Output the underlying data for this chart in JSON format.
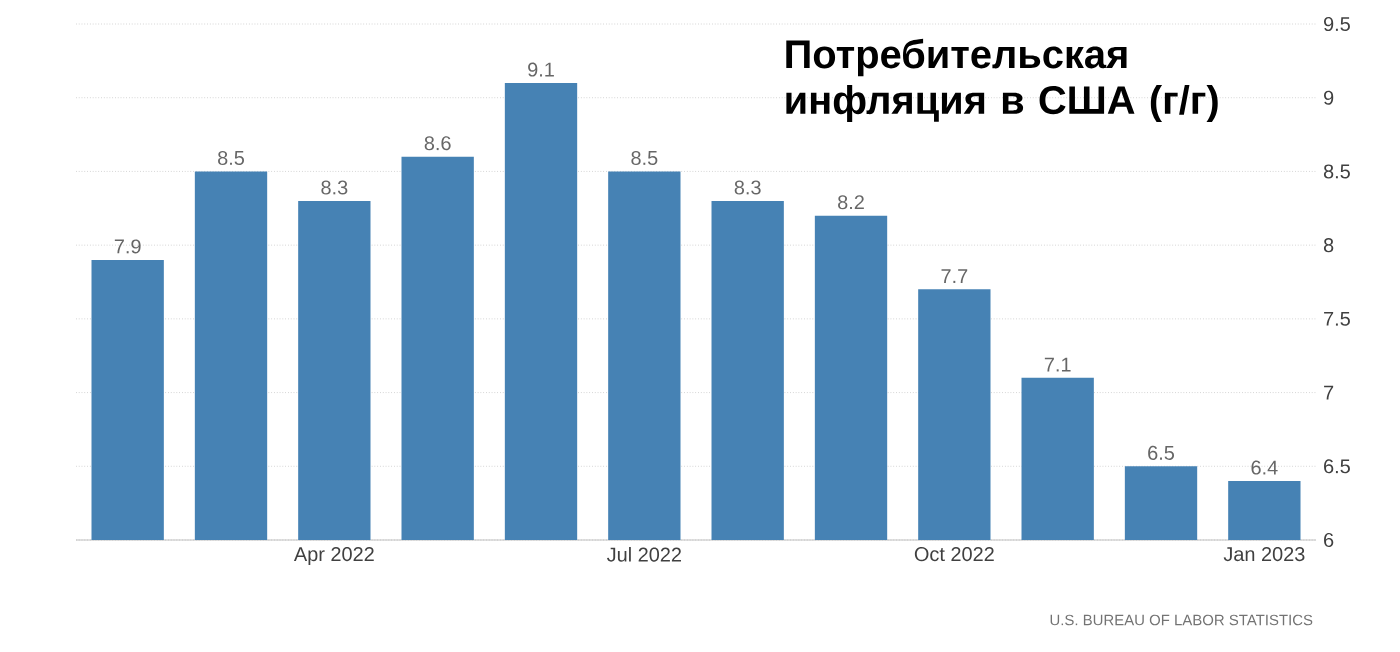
{
  "chart_data": {
    "type": "bar",
    "title": "Потребительская инфляция в США (г/г)",
    "categories": [
      null,
      null,
      "Apr 2022",
      null,
      null,
      "Jul 2022",
      null,
      null,
      "Oct 2022",
      null,
      null,
      "Jan 2023"
    ],
    "values": [
      7.9,
      8.5,
      8.3,
      8.6,
      9.1,
      8.5,
      8.3,
      8.2,
      7.7,
      7.1,
      6.5,
      6.4
    ],
    "color": "#4682b4",
    "data_labels": true,
    "grid": "y",
    "ylim": [
      6,
      9.5
    ],
    "yticks": [
      6,
      6.5,
      7,
      7.5,
      8,
      8.5,
      9,
      9.5
    ],
    "annotations": [
      "U.S. BUREAU OF LABOR STATISTICS"
    ]
  }
}
